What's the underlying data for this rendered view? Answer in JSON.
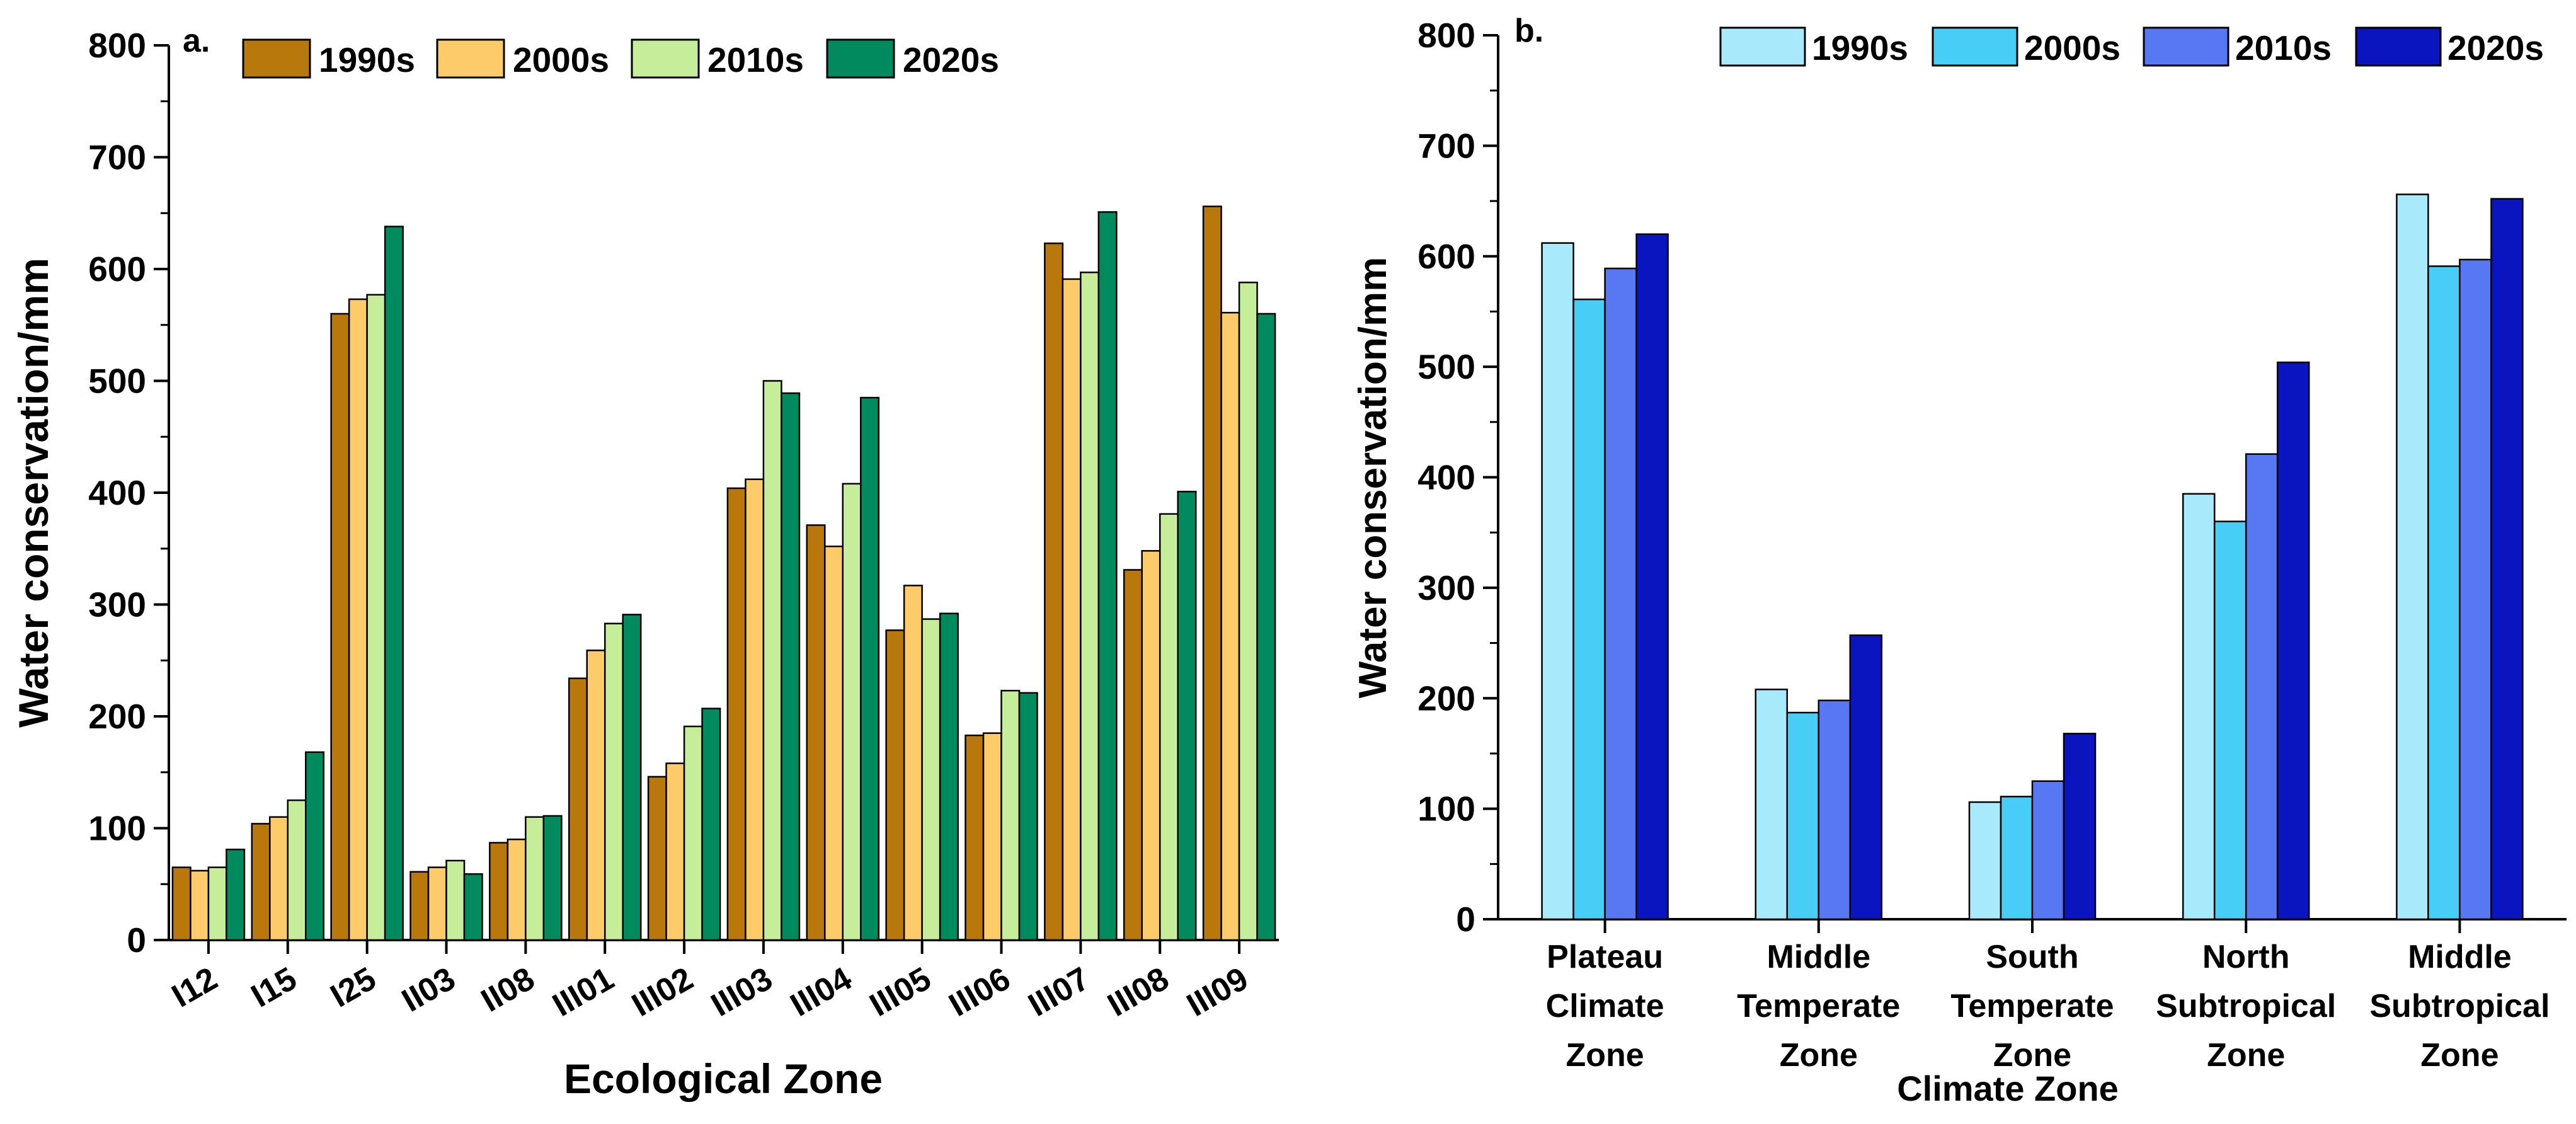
{
  "chart_data": [
    {
      "panel_label": "a.",
      "type": "bar",
      "title": "",
      "xlabel": "Ecological Zone",
      "ylabel": "Water conservation/mm",
      "ylim": [
        0,
        800
      ],
      "yticks": [
        "0",
        "100",
        "200",
        "300",
        "400",
        "500",
        "600",
        "700",
        "800"
      ],
      "categories": [
        "I12",
        "I15",
        "I25",
        "II03",
        "II08",
        "III01",
        "III02",
        "III03",
        "III04",
        "III05",
        "III06",
        "III07",
        "III08",
        "III09"
      ],
      "series": [
        {
          "name": "1990s",
          "color": "#B8780B",
          "values": [
            65,
            104,
            560,
            61,
            87,
            234,
            146,
            404,
            371,
            277,
            183,
            623,
            331,
            656
          ]
        },
        {
          "name": "2000s",
          "color": "#FDCB6A",
          "values": [
            62,
            110,
            573,
            65,
            90,
            259,
            158,
            412,
            352,
            317,
            185,
            591,
            348,
            561
          ]
        },
        {
          "name": "2010s",
          "color": "#C6EE9A",
          "values": [
            65,
            125,
            577,
            71,
            110,
            283,
            191,
            500,
            408,
            287,
            223,
            597,
            381,
            588
          ]
        },
        {
          "name": "2020s",
          "color": "#008A5E",
          "values": [
            81,
            168,
            638,
            59,
            111,
            291,
            207,
            489,
            485,
            292,
            221,
            651,
            401,
            560
          ]
        }
      ],
      "legend_position": "top"
    },
    {
      "panel_label": "b.",
      "type": "bar",
      "title": "",
      "xlabel": "Climate Zone",
      "ylabel": "Water conservation/mm",
      "ylim": [
        0,
        800
      ],
      "yticks": [
        "0",
        "100",
        "200",
        "300",
        "400",
        "500",
        "600",
        "700",
        "800"
      ],
      "categories": [
        [
          "Plateau",
          "Climate",
          "Zone"
        ],
        [
          "Middle",
          "Temperate",
          "Zone"
        ],
        [
          "South",
          "Temperate",
          "Zone"
        ],
        [
          "North",
          "Subtropical",
          "Zone"
        ],
        [
          "Middle",
          "Subtropical",
          "Zone"
        ]
      ],
      "series": [
        {
          "name": "1990s",
          "color": "#A8E9FB",
          "values": [
            612,
            208,
            106,
            385,
            656
          ]
        },
        {
          "name": "2000s",
          "color": "#47CDF6",
          "values": [
            561,
            187,
            111,
            360,
            591
          ]
        },
        {
          "name": "2010s",
          "color": "#5878F3",
          "values": [
            589,
            198,
            125,
            421,
            597
          ]
        },
        {
          "name": "2020s",
          "color": "#0A14BF",
          "values": [
            620,
            257,
            168,
            504,
            652
          ]
        }
      ],
      "legend_position": "top-right"
    }
  ]
}
